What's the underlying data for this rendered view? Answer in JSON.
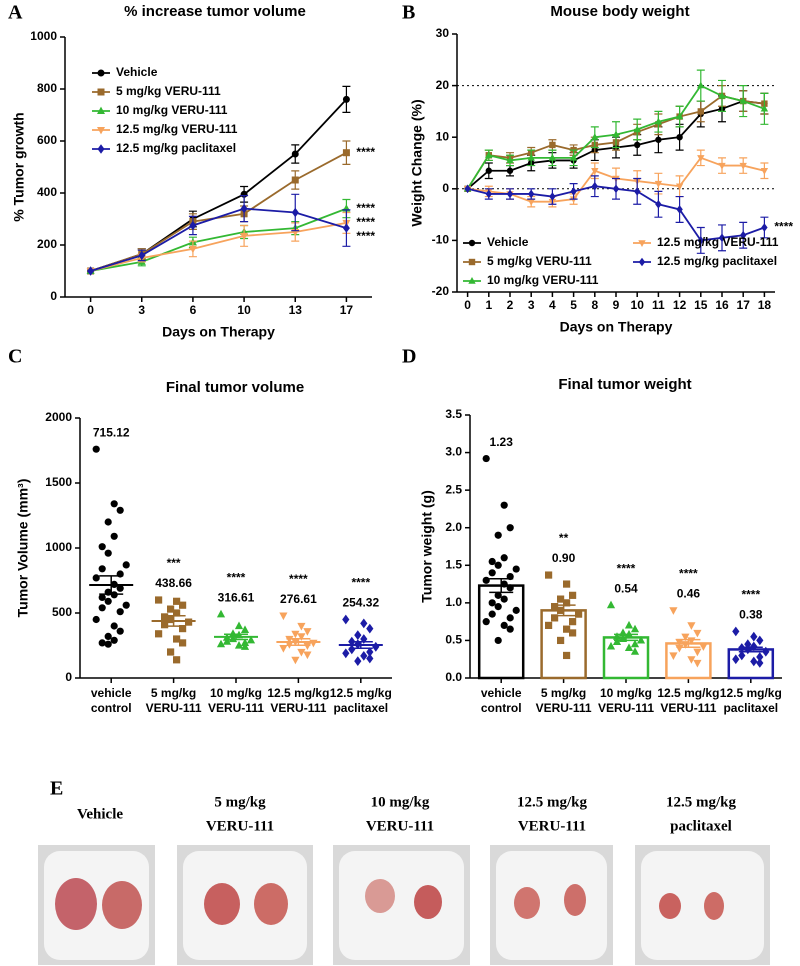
{
  "chart_data": [
    {
      "type": "line",
      "panel": "A",
      "title": "% increase tumor volume",
      "x_label": "Days on Therapy",
      "y_label": "% Tumor growth",
      "categories": [
        "0",
        "3",
        "6",
        "10",
        "13",
        "17"
      ],
      "ylim": [
        0,
        1000
      ],
      "yticks": [
        0,
        200,
        400,
        600,
        800,
        1000
      ],
      "legend": "upper left",
      "series": [
        {
          "name": "Vehicle",
          "color": "#000000",
          "marker": "circle",
          "values": [
            100,
            165,
            300,
            395,
            550,
            760
          ],
          "errors": [
            0,
            20,
            30,
            30,
            35,
            50
          ]
        },
        {
          "name": "5 mg/kg VERU-111",
          "color": "#9a6a2c",
          "marker": "square",
          "values": [
            100,
            165,
            290,
            320,
            450,
            555
          ],
          "errors": [
            0,
            20,
            30,
            30,
            35,
            45
          ],
          "end_label": "****"
        },
        {
          "name": "10 mg/kg VERU-111",
          "color": "#33b833",
          "marker": "triangle",
          "values": [
            100,
            135,
            210,
            250,
            265,
            340
          ],
          "errors": [
            0,
            15,
            20,
            25,
            25,
            35
          ],
          "end_label": "****"
        },
        {
          "name": "12.5 mg/kg VERU-111",
          "color": "#f7a35c",
          "marker": "triangle-down",
          "values": [
            100,
            150,
            185,
            235,
            250,
            285
          ],
          "errors": [
            0,
            15,
            30,
            40,
            35,
            40
          ],
          "end_label": "****"
        },
        {
          "name": "12.5 mg/kg paclitaxel",
          "color": "#1c1ca6",
          "marker": "diamond",
          "values": [
            100,
            160,
            275,
            340,
            325,
            265
          ],
          "errors": [
            0,
            20,
            35,
            50,
            70,
            70
          ],
          "end_label": "****"
        }
      ]
    },
    {
      "type": "line",
      "panel": "B",
      "title": "Mouse body weight",
      "x_label": "Days on Therapy",
      "y_label": "Weight Change (%)",
      "categories": [
        "0",
        "1",
        "2",
        "3",
        "4",
        "5",
        "8",
        "9",
        "10",
        "11",
        "12",
        "15",
        "16",
        "17",
        "18"
      ],
      "ylim": [
        -20,
        30
      ],
      "yticks": [
        -20,
        -10,
        0,
        10,
        20,
        30
      ],
      "reference_lines": [
        0,
        20
      ],
      "legend": "lower left",
      "legend_columns": 2,
      "series": [
        {
          "name": "Vehicle",
          "color": "#000000",
          "marker": "circle",
          "values": [
            0,
            3.5,
            3.5,
            5,
            5.5,
            5.5,
            7.5,
            8,
            8.5,
            9.5,
            10,
            14.5,
            15.5,
            17,
            16.5
          ],
          "errors": [
            0,
            1.5,
            1,
            1.5,
            1.5,
            1.5,
            2,
            2,
            2,
            2.5,
            2.5,
            2.5,
            2.5,
            2,
            2
          ]
        },
        {
          "name": "5 mg/kg VERU-111",
          "color": "#9a6a2c",
          "marker": "square",
          "values": [
            0,
            6.5,
            6,
            7,
            8.5,
            7.5,
            8.5,
            9,
            11,
            12.5,
            14,
            15,
            18,
            17,
            16.5
          ],
          "errors": [
            0,
            1,
            1,
            1,
            1,
            1,
            1.5,
            1.5,
            1.5,
            2,
            2,
            2,
            2,
            2,
            2
          ]
        },
        {
          "name": "10 mg/kg VERU-111",
          "color": "#33b833",
          "marker": "triangle",
          "values": [
            0,
            6.5,
            5.5,
            6,
            6,
            6,
            10,
            10.5,
            11.5,
            13,
            14,
            20,
            18,
            17,
            15.5
          ],
          "errors": [
            0,
            1,
            1,
            1.5,
            1.5,
            1.5,
            2,
            2.5,
            2,
            2,
            2,
            3,
            3,
            3,
            3
          ]
        },
        {
          "name": "12.5 mg/kg VERU-111",
          "color": "#f7a35c",
          "marker": "triangle-down",
          "values": [
            0,
            -0.5,
            -1,
            -2.5,
            -2.5,
            -2,
            3.5,
            2,
            1.5,
            1,
            0.5,
            6,
            4.5,
            4.5,
            3.5
          ],
          "errors": [
            0,
            1,
            1,
            1,
            1,
            1,
            1.5,
            2,
            2,
            2,
            2,
            1.5,
            1.5,
            1.5,
            1.5
          ]
        },
        {
          "name": "12.5 mg/kg paclitaxel",
          "color": "#1c1ca6",
          "marker": "diamond",
          "values": [
            0,
            -1,
            -1,
            -1,
            -1.5,
            -0.5,
            0.5,
            0,
            -0.5,
            -3,
            -4,
            -10,
            -9.5,
            -9,
            -7.5
          ],
          "errors": [
            0,
            1,
            1,
            1,
            1.5,
            1.5,
            2,
            2,
            2.5,
            2.5,
            2.5,
            2.5,
            2.5,
            2.5,
            2
          ],
          "end_label": "****"
        }
      ]
    },
    {
      "type": "strip",
      "panel": "C",
      "title": "Final tumor volume",
      "y_label": "Tumor Volume (mm³)",
      "categories": [
        [
          "vehicle",
          "control"
        ],
        [
          "5 mg/kg",
          "VERU-111"
        ],
        [
          "10 mg/kg",
          "VERU-111"
        ],
        [
          "12.5 mg/kg",
          "VERU-111"
        ],
        [
          "12.5 mg/kg",
          "paclitaxel"
        ]
      ],
      "colors": [
        "#000000",
        "#9a6a2c",
        "#33b833",
        "#f7a35c",
        "#1c1ca6"
      ],
      "markers": [
        "circle",
        "square",
        "triangle",
        "triangle-down",
        "diamond"
      ],
      "ylim": [
        0,
        2000
      ],
      "yticks": [
        0,
        500,
        1000,
        1500,
        2000
      ],
      "values": [
        715.12,
        438.66,
        316.61,
        276.61,
        254.32
      ],
      "errors": [
        70,
        40,
        20,
        25,
        25
      ],
      "stars": [
        null,
        "***",
        "****",
        "****",
        "****"
      ],
      "points": [
        [
          1760,
          1340,
          1290,
          1200,
          1090,
          1010,
          960,
          870,
          840,
          800,
          770,
          720,
          690,
          660,
          640,
          620,
          590,
          560,
          540,
          510,
          450,
          400,
          360,
          320,
          290,
          270,
          260
        ],
        [
          600,
          590,
          560,
          530,
          500,
          470,
          450,
          430,
          410,
          380,
          340,
          300,
          270,
          200,
          140
        ],
        [
          490,
          400,
          370,
          340,
          330,
          310,
          300,
          290,
          280,
          270,
          260,
          250,
          240
        ],
        [
          480,
          400,
          360,
          340,
          320,
          300,
          280,
          270,
          260,
          250,
          230,
          200,
          180,
          140
        ],
        [
          450,
          420,
          380,
          330,
          300,
          280,
          260,
          240,
          220,
          200,
          190,
          170,
          150,
          130
        ]
      ]
    },
    {
      "type": "bar",
      "panel": "D",
      "title": "Final tumor weight",
      "y_label": "Tumor weight (g)",
      "categories": [
        [
          "vehicle",
          "control"
        ],
        [
          "5 mg/kg",
          "VERU-111"
        ],
        [
          "10 mg/kg",
          "VERU-111"
        ],
        [
          "12.5 mg/kg",
          "VERU-111"
        ],
        [
          "12.5 mg/kg",
          "paclitaxel"
        ]
      ],
      "colors": [
        "#000000",
        "#9a6a2c",
        "#33b833",
        "#f7a35c",
        "#1c1ca6"
      ],
      "markers": [
        "circle",
        "square",
        "triangle",
        "triangle-down",
        "diamond"
      ],
      "ylim": [
        0,
        3.5
      ],
      "yticks": [
        {
          "value": 0,
          "label": "0.0"
        },
        0.5,
        {
          "value": 1,
          "label": "1.0"
        },
        1.5,
        {
          "value": 2,
          "label": "2.0"
        },
        2.5,
        {
          "value": 3,
          "label": "3.0"
        },
        3.5
      ],
      "values": [
        1.23,
        0.9,
        0.54,
        0.46,
        0.38
      ],
      "value_labels": [
        "1.23",
        "0.90",
        "0.54",
        "0.46",
        "0.38"
      ],
      "errors": [
        0.09,
        0.07,
        0.04,
        0.05,
        0.03
      ],
      "stars": [
        null,
        "**",
        "****",
        "****",
        "****"
      ],
      "points": [
        [
          2.92,
          2.3,
          2.0,
          1.9,
          1.6,
          1.55,
          1.5,
          1.45,
          1.4,
          1.35,
          1.3,
          1.25,
          1.2,
          1.1,
          1.05,
          1.0,
          0.95,
          0.9,
          0.85,
          0.8,
          0.75,
          0.7,
          0.65,
          0.5
        ],
        [
          1.37,
          1.25,
          1.1,
          1.05,
          1.0,
          0.95,
          0.9,
          0.85,
          0.8,
          0.75,
          0.7,
          0.65,
          0.6,
          0.5,
          0.3
        ],
        [
          0.97,
          0.7,
          0.65,
          0.6,
          0.58,
          0.55,
          0.52,
          0.5,
          0.48,
          0.45,
          0.42,
          0.4,
          0.35
        ],
        [
          0.9,
          0.7,
          0.6,
          0.55,
          0.5,
          0.48,
          0.45,
          0.42,
          0.4,
          0.35,
          0.3,
          0.25,
          0.2
        ],
        [
          0.62,
          0.55,
          0.5,
          0.45,
          0.42,
          0.4,
          0.38,
          0.35,
          0.3,
          0.28,
          0.25,
          0.22,
          0.2
        ]
      ]
    }
  ],
  "photos": {
    "panel": "E",
    "captions": [
      [
        "Vehicle"
      ],
      [
        "5 mg/kg",
        "VERU-111"
      ],
      [
        "10 mg/kg",
        "VERU-111"
      ],
      [
        "12.5 mg/kg",
        "VERU-111"
      ],
      [
        "12.5 mg/kg",
        "paclitaxel"
      ]
    ]
  }
}
